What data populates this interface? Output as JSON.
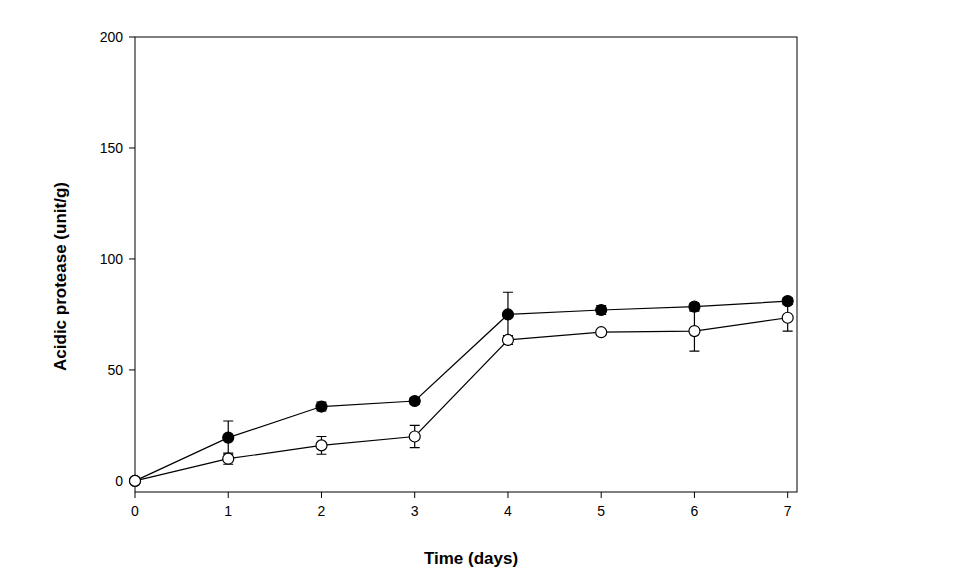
{
  "chart_data": {
    "type": "line",
    "x_label": "Time (days)",
    "y_label": "Acidic protease (unit/g)",
    "x": [
      0,
      1,
      2,
      3,
      4,
      5,
      6,
      7
    ],
    "xlim": [
      0,
      7.1
    ],
    "xticks": [
      0,
      1,
      2,
      3,
      4,
      5,
      6,
      7
    ],
    "ylim": [
      -5,
      200
    ],
    "yticks": [
      0,
      50,
      100,
      150,
      200
    ],
    "grid": false,
    "series": [
      {
        "color": "#000000",
        "marker": "circle",
        "line_style": "solid",
        "values": [
          0,
          19.5,
          33.5,
          36,
          75,
          77,
          78.5,
          81
        ],
        "errors": [
          0,
          7.5,
          2,
          1.5,
          10,
          2,
          1.5,
          1.5
        ]
      },
      {
        "color": "#000000",
        "marker": "open_circle",
        "line_style": "solid",
        "values": [
          0,
          10,
          16,
          20,
          63.5,
          67,
          67.5,
          73.5
        ],
        "errors": [
          0,
          2.5,
          4,
          5,
          2,
          1,
          9,
          6
        ]
      }
    ]
  }
}
